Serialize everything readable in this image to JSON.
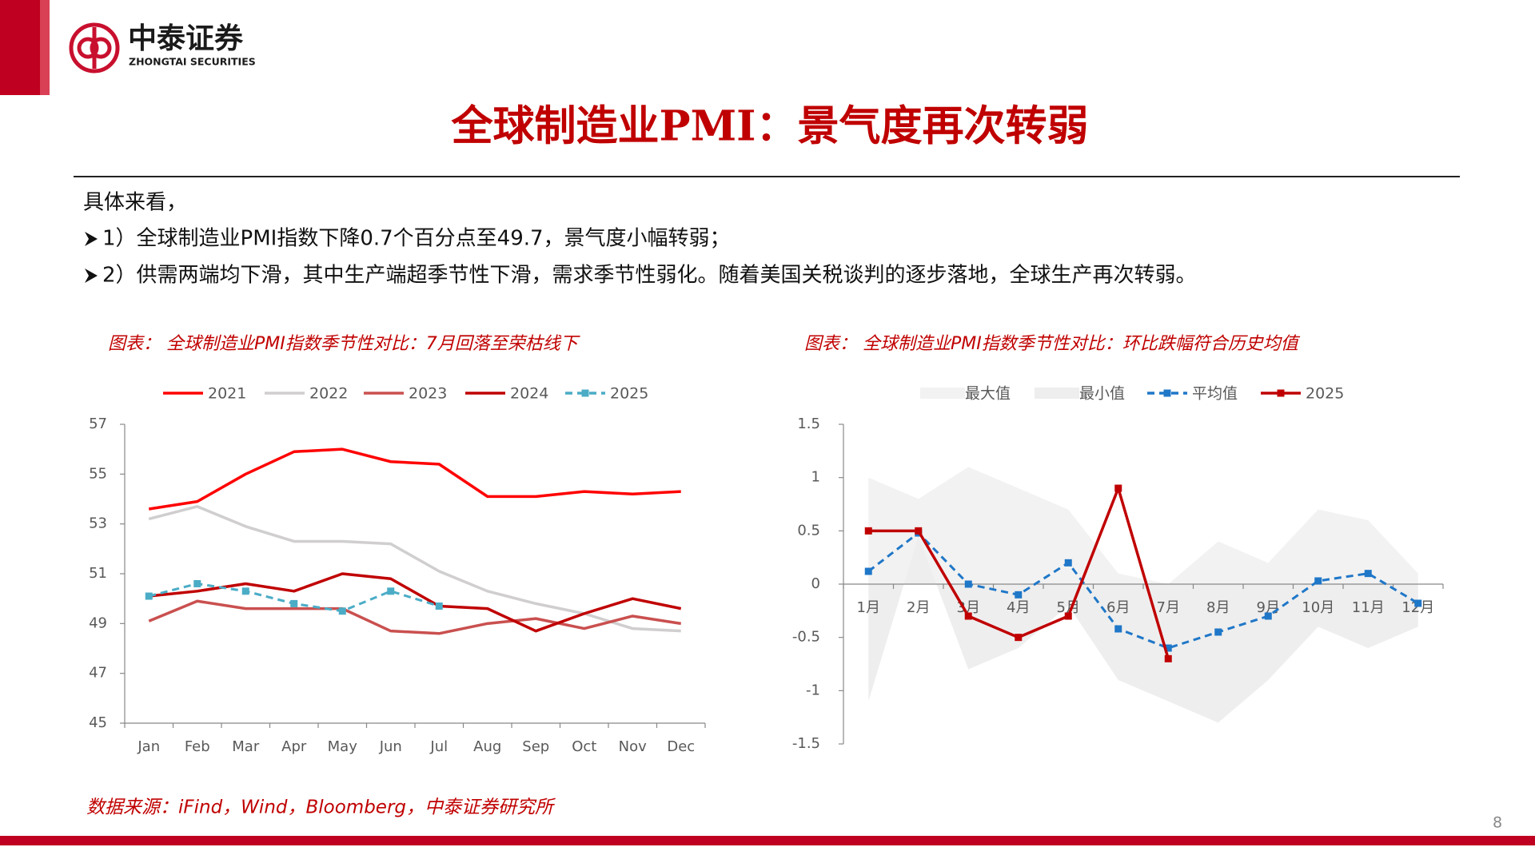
{
  "header": {
    "brand": "中泰证券",
    "brand_en": "ZHONGTAI SECURITIES"
  },
  "title": "全球制造业PMI：景气度再次转弱",
  "intro": "具体来看，",
  "bullets": [
    "1）全球制造业PMI指数下降0.7个百分点至49.7，景气度小幅转弱；",
    "2）供需两端均下滑，其中生产端超季节性下滑，需求季节性弱化。随着美国关税谈判的逐步落地，全球生产再次转弱。"
  ],
  "chart_data": [
    {
      "type": "line",
      "title": "图表： 全球制造业PMI指数季节性对比：7月回落至荣枯线下",
      "categories": [
        "Jan",
        "Feb",
        "Mar",
        "Apr",
        "May",
        "Jun",
        "Jul",
        "Aug",
        "Sep",
        "Oct",
        "Nov",
        "Dec"
      ],
      "ylim": [
        45,
        57
      ],
      "yticks": [
        45,
        47,
        49,
        51,
        53,
        55,
        57
      ],
      "legend": "top",
      "series": [
        {
          "name": "2021",
          "color": "#ff0000",
          "values": [
            53.6,
            53.9,
            55.0,
            55.9,
            56.0,
            55.5,
            55.4,
            54.1,
            54.1,
            54.3,
            54.2,
            54.3
          ]
        },
        {
          "name": "2022",
          "color": "#d0cece",
          "values": [
            53.2,
            53.7,
            52.9,
            52.3,
            52.3,
            52.2,
            51.1,
            50.3,
            49.8,
            49.4,
            48.8,
            48.7
          ]
        },
        {
          "name": "2023",
          "color": "#c9504f",
          "values": [
            49.1,
            49.9,
            49.6,
            49.6,
            49.6,
            48.7,
            48.6,
            49.0,
            49.2,
            48.8,
            49.3,
            49.0
          ]
        },
        {
          "name": "2024",
          "color": "#c00000",
          "values": [
            50.1,
            50.3,
            50.6,
            50.3,
            51.0,
            50.8,
            49.7,
            49.6,
            48.7,
            49.4,
            50.0,
            49.6
          ]
        },
        {
          "name": "2025",
          "color": "#4bacc6",
          "dashed": true,
          "markers": true,
          "values": [
            50.1,
            50.6,
            50.3,
            49.8,
            49.5,
            50.3,
            49.7,
            null,
            null,
            null,
            null,
            null
          ]
        }
      ]
    },
    {
      "type": "line",
      "title": "图表： 全球制造业PMI指数季节性对比：环比跌幅符合历史均值",
      "categories": [
        "1月",
        "2月",
        "3月",
        "4月",
        "5月",
        "6月",
        "7月",
        "8月",
        "9月",
        "10月",
        "11月",
        "12月"
      ],
      "ylim": [
        -1.5,
        1.5
      ],
      "yticks": [
        -1.5,
        -1,
        -0.5,
        0,
        0.5,
        1,
        1.5
      ],
      "legend": "top",
      "series": [
        {
          "name": "最大值",
          "color": "#f2f2f2",
          "fill": true,
          "values": [
            1.0,
            0.8,
            1.1,
            0.9,
            0.7,
            0.1,
            0.0,
            0.4,
            0.2,
            0.7,
            0.6,
            0.1
          ]
        },
        {
          "name": "最小值",
          "color": "#eeeeee",
          "fill": true,
          "values": [
            -1.1,
            0.45,
            -0.8,
            -0.6,
            -0.2,
            -0.9,
            -1.1,
            -1.3,
            -0.9,
            -0.4,
            -0.6,
            -0.4
          ]
        },
        {
          "name": "平均值",
          "color": "#1f77c8",
          "dashed": true,
          "markers": true,
          "values": [
            0.12,
            0.48,
            0.0,
            -0.1,
            0.2,
            -0.42,
            -0.6,
            -0.45,
            -0.3,
            0.03,
            0.1,
            -0.18
          ]
        },
        {
          "name": "2025",
          "color": "#c00000",
          "markers": true,
          "values": [
            0.5,
            0.5,
            -0.3,
            -0.5,
            -0.3,
            0.9,
            -0.7,
            null,
            null,
            null,
            null,
            null
          ]
        }
      ]
    }
  ],
  "source": "数据来源：iFind，Wind，Bloomberg，中泰证券研究所",
  "page_number": "8"
}
